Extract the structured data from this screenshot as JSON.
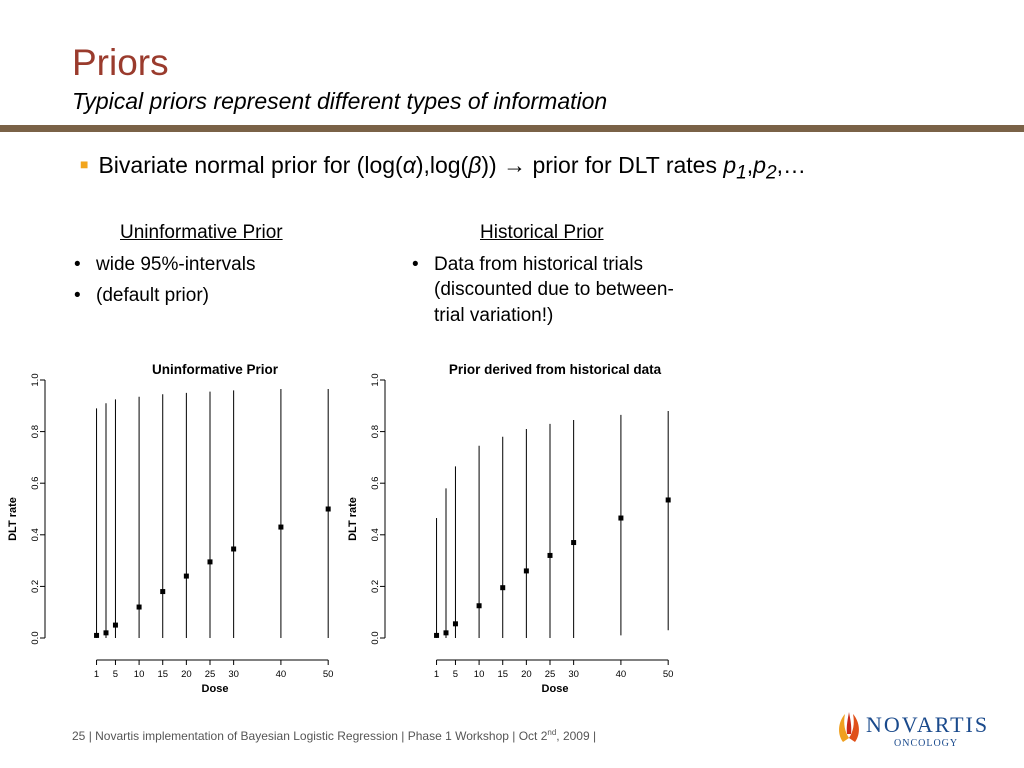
{
  "slide": {
    "title": "Priors",
    "subtitle": "Typical priors represent different types of information",
    "bullet": {
      "pre": "Bivariate normal prior for (log(",
      "alpha": "α",
      "mid": "),log(",
      "beta": "β",
      "post": "))",
      "arrow": "→",
      "after": " prior for DLT rates ",
      "p": "p",
      "sub1": "1",
      "comma": ",",
      "sub2": "2",
      "ellipsis": ",…"
    },
    "left_col": {
      "heading": "Uninformative Prior",
      "items": [
        "wide 95%-intervals",
        "(default prior)"
      ]
    },
    "right_col": {
      "heading": "Historical Prior",
      "items": [
        "Data from historical trials (discounted due to between-trial variation!)"
      ]
    },
    "footer": {
      "page": "25",
      "text": " | Novartis implementation of Bayesian Logistic Regression | Phase 1 Workshop | Oct 2",
      "sup": "nd",
      "end": ", 2009 |"
    },
    "logo": {
      "name": "NOVARTIS",
      "unit": "ONCOLOGY"
    }
  },
  "chart_data": [
    {
      "type": "scatter",
      "title": "Uninformative Prior",
      "xlabel": "Dose",
      "ylabel": "DLT rate",
      "ylim": [
        0,
        1
      ],
      "y_ticks": [
        "0.0",
        "0.2",
        "0.4",
        "0.6",
        "0.8",
        "1.0"
      ],
      "x_ticks": [
        "1",
        "5",
        "10",
        "15",
        "20",
        "25",
        "30",
        "40",
        "50"
      ],
      "x": [
        1,
        3,
        5,
        10,
        15,
        20,
        25,
        30,
        40,
        50
      ],
      "point": [
        0.01,
        0.02,
        0.05,
        0.12,
        0.18,
        0.24,
        0.295,
        0.345,
        0.43,
        0.5
      ],
      "lower": [
        0,
        0,
        0,
        0,
        0,
        0,
        0,
        0,
        0,
        0
      ],
      "upper": [
        0.89,
        0.91,
        0.925,
        0.935,
        0.945,
        0.95,
        0.955,
        0.96,
        0.965,
        0.965
      ],
      "grid": false,
      "legend": "none"
    },
    {
      "type": "scatter",
      "title": "Prior derived from historical data",
      "xlabel": "Dose",
      "ylabel": "DLT rate",
      "ylim": [
        0,
        1
      ],
      "y_ticks": [
        "0.0",
        "0.2",
        "0.4",
        "0.6",
        "0.8",
        "1.0"
      ],
      "x_ticks": [
        "1",
        "5",
        "10",
        "15",
        "20",
        "25",
        "30",
        "40",
        "50"
      ],
      "x": [
        1,
        3,
        5,
        10,
        15,
        20,
        25,
        30,
        40,
        50
      ],
      "point": [
        0.01,
        0.02,
        0.055,
        0.125,
        0.195,
        0.26,
        0.32,
        0.37,
        0.465,
        0.535
      ],
      "lower": [
        0,
        0,
        0,
        0,
        0,
        0,
        0,
        0,
        0.01,
        0.03
      ],
      "upper": [
        0.465,
        0.58,
        0.665,
        0.745,
        0.78,
        0.81,
        0.83,
        0.845,
        0.865,
        0.88
      ],
      "grid": false,
      "legend": "none"
    }
  ]
}
